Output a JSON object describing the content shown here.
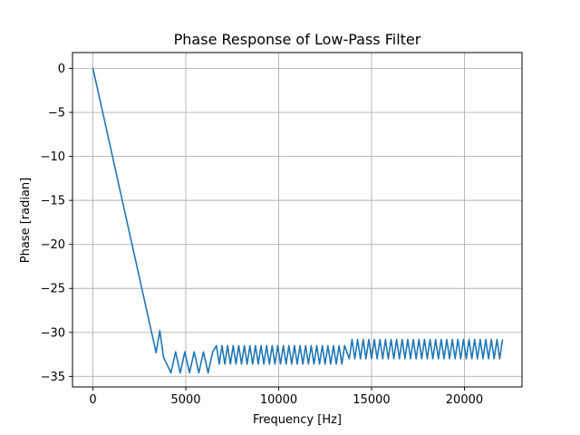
{
  "chart_data": {
    "type": "line",
    "title": "Phase Response of Low-Pass Filter",
    "xlabel": "Frequency [Hz]",
    "ylabel": "Phase [radian]",
    "xlim": [
      -1100,
      23100
    ],
    "ylim": [
      -36.2,
      1.8
    ],
    "xticks": [
      0,
      5000,
      10000,
      15000,
      20000
    ],
    "xtick_labels": [
      "0",
      "5000",
      "10000",
      "15000",
      "20000"
    ],
    "yticks": [
      0,
      -5,
      -10,
      -15,
      -20,
      -25,
      -30,
      -35
    ],
    "ytick_labels": [
      "0",
      "−5",
      "−10",
      "−15",
      "−20",
      "−25",
      "−30",
      "−35"
    ],
    "grid": true,
    "line_color": "#1f77b4",
    "series": [
      {
        "x": [
          0,
          3400,
          3600,
          3800,
          4200,
          4450,
          4700,
          4950,
          5200,
          5450,
          5700,
          5950,
          6200,
          6450,
          6650,
          13650,
          22050
        ],
        "y": [
          0,
          -32.3,
          -29.8,
          -32.8,
          -34.6,
          -32.2,
          -34.6,
          -32.2,
          -34.6,
          -32.2,
          -34.6,
          -32.2,
          -34.6,
          -32.2,
          -31.5,
          -30.8,
          -30.8
        ],
        "ripple_segments": [
          {
            "x_start": 6650,
            "x_end": 13650,
            "y_top": -31.5,
            "y_bottom": -33.6,
            "period": 300
          },
          {
            "x_start": 13650,
            "x_end": 22050,
            "y_top": -30.8,
            "y_bottom": -33.0,
            "period": 300
          }
        ]
      }
    ]
  }
}
